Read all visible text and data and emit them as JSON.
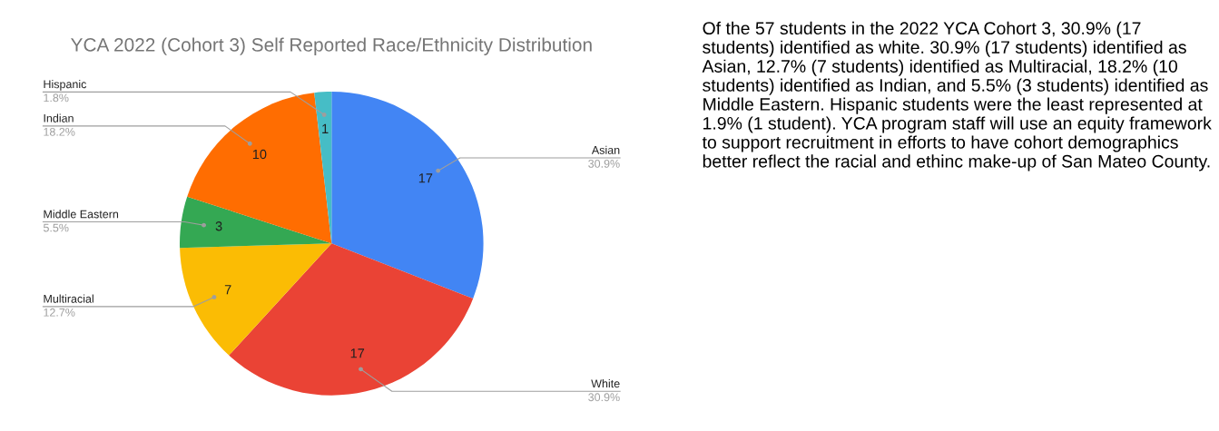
{
  "chart_data": {
    "type": "pie",
    "title": "YCA 2022 (Cohort 3) Self Reported Race/Ethnicity Distribution",
    "categories": [
      "Asian",
      "White",
      "Multiracial",
      "Middle Eastern",
      "Indian",
      "Hispanic"
    ],
    "values": [
      17,
      17,
      7,
      3,
      10,
      1
    ],
    "colors": [
      "#4285f4",
      "#ea4335",
      "#fbbc04",
      "#34a853",
      "#ff6d01",
      "#46bdc6"
    ],
    "value_labels": [
      "17",
      "17",
      "7",
      "3",
      "10",
      "1"
    ],
    "annotations": [
      {
        "text": "30.9%",
        "x": "Asian"
      },
      {
        "text": "30.9%",
        "x": "White"
      },
      {
        "text": "12.7%",
        "x": "Multiracial"
      },
      {
        "text": "5.5%",
        "x": "Middle Eastern"
      },
      {
        "text": "18.2%",
        "x": "Indian"
      },
      {
        "text": "1.8%",
        "x": "Hispanic"
      },
      "Of the 57 students in the 2022 YCA Cohort 3, 30.9% (17 students) identified as white. 30.9% (17 students) identified as Asian, 12.7% (7 students) identified as Multiracial, 18.2% (10 students) identified as Indian, and 5.5% (3 students) identified as Middle Eastern. Hispanic students were the least represented at 1.9% (1 student). YCA program staff will use an equity framework to support recruitment in efforts to have cohort demographics better reflect the racial and ethinc make-up of San Mateo County."
    ]
  }
}
